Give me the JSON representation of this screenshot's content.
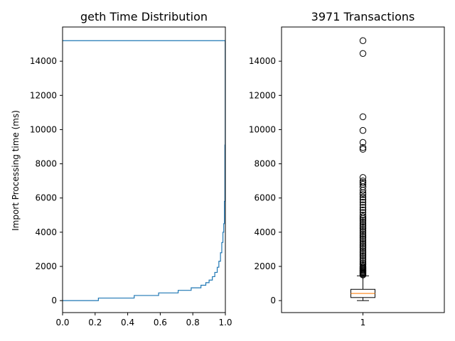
{
  "chart_data": [
    {
      "type": "line",
      "title": "geth Time Distribution",
      "xlabel": "",
      "ylabel": "Import Processing time (ms)",
      "xlim": [
        0.0,
        1.0
      ],
      "ylim": [
        -700,
        16000
      ],
      "xticks": [
        "0.0",
        "0.2",
        "0.4",
        "0.6",
        "0.8",
        "1.0"
      ],
      "yticks": [
        "0",
        "2000",
        "4000",
        "6000",
        "8000",
        "10000",
        "12000",
        "14000"
      ],
      "grid": false,
      "series": [
        {
          "color": "#1f77b4",
          "x": [
            0.0,
            0.22,
            0.22,
            0.44,
            0.44,
            0.59,
            0.59,
            0.71,
            0.71,
            0.79,
            0.79,
            0.85,
            0.85,
            0.88,
            0.88,
            0.9,
            0.9,
            0.92,
            0.92,
            0.935,
            0.935,
            0.95,
            0.95,
            0.96,
            0.96,
            0.97,
            0.97,
            0.978,
            0.978,
            0.985,
            0.985,
            0.99,
            0.99,
            0.994,
            0.994,
            0.997,
            0.997,
            0.999,
            0.999,
            1.0,
            1.0,
            1.0,
            1.0
          ],
          "y": [
            0,
            0,
            150,
            150,
            300,
            300,
            450,
            450,
            600,
            600,
            750,
            750,
            900,
            900,
            1050,
            1050,
            1200,
            1200,
            1400,
            1400,
            1650,
            1650,
            1950,
            1950,
            2300,
            2300,
            2800,
            2800,
            3400,
            3400,
            4000,
            4000,
            4500,
            4500,
            5800,
            5800,
            9100,
            9100,
            15200,
            15200,
            15200,
            15200,
            15200
          ]
        },
        {
          "color": "#1f77b4",
          "x": [
            0.0,
            1.0
          ],
          "y": [
            15200,
            15200
          ]
        }
      ]
    },
    {
      "type": "box",
      "title": "3971 Transactions",
      "categories": [
        "1"
      ],
      "ylim": [
        -700,
        16000
      ],
      "yticks": [
        "0",
        "2000",
        "4000",
        "6000",
        "8000",
        "10000",
        "12000",
        "14000"
      ],
      "box": {
        "whisker_low": 0,
        "q1": 180,
        "median": 420,
        "q3": 660,
        "whisker_high": 1450,
        "median_color": "#ff7f0e"
      },
      "outliers": [
        15200,
        14450,
        10750,
        9950,
        9250,
        8950,
        8850,
        7200,
        7000,
        6900,
        6800,
        6650,
        6450,
        6300,
        6200,
        6050,
        5900,
        5750,
        5600,
        5450,
        5300,
        5150,
        5000,
        4900,
        4800,
        4700,
        4600,
        4500,
        4400,
        4300,
        4200,
        4100,
        4000,
        3900,
        3800,
        3700,
        3600,
        3500,
        3400,
        3300,
        3200,
        3100,
        3000,
        2900,
        2800,
        2700,
        2600,
        2500,
        2400,
        2300,
        2200,
        2100,
        2000,
        1950,
        1900,
        1850,
        1800,
        1750,
        1700,
        1650,
        1600,
        1550,
        1500
      ]
    }
  ]
}
